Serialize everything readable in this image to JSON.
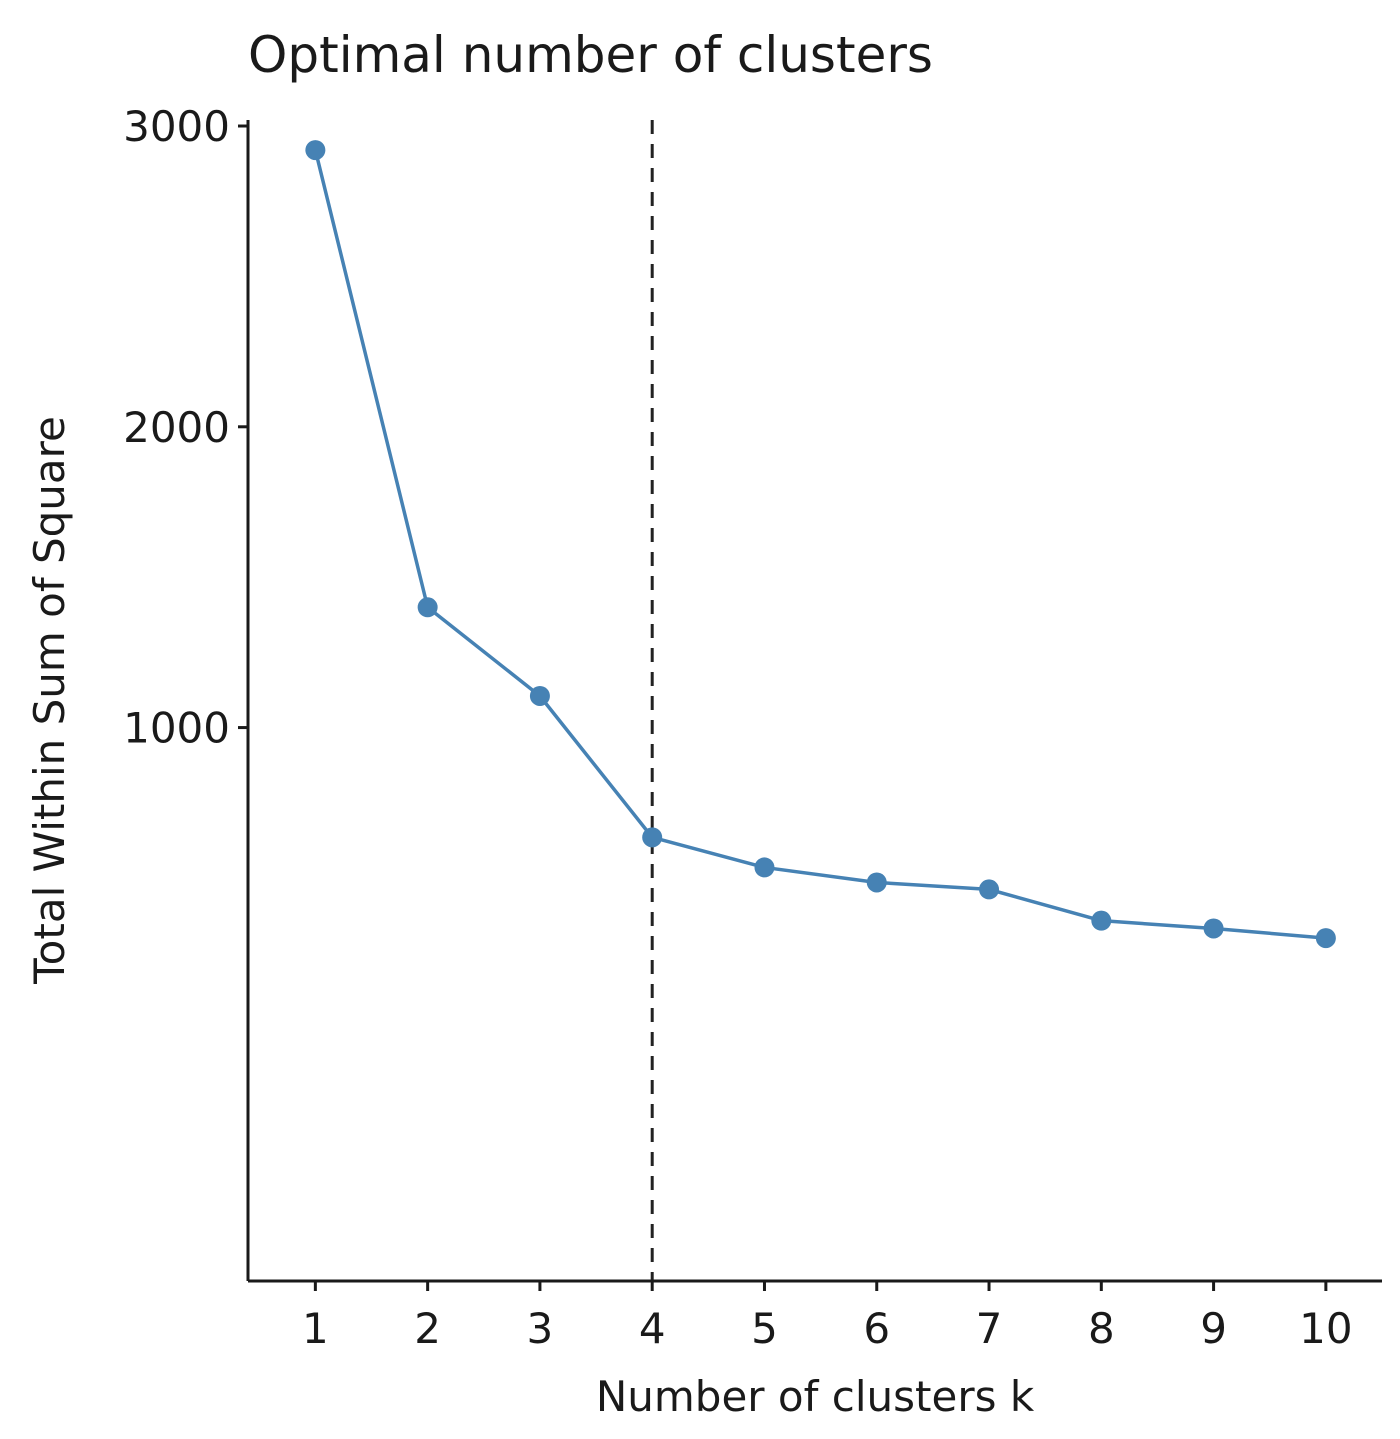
{
  "chart_data": {
    "type": "line",
    "title": "Optimal number of clusters",
    "xlabel": "Number of clusters k",
    "ylabel": "Total Within Sum of Square",
    "x": [
      1,
      2,
      3,
      4,
      5,
      6,
      7,
      8,
      9,
      10
    ],
    "x_tick_labels": [
      "1",
      "2",
      "3",
      "4",
      "5",
      "6",
      "7",
      "8",
      "9",
      "10"
    ],
    "y_ticks": [
      1000,
      2000,
      3000
    ],
    "y_tick_labels": [
      "1000",
      "2000",
      "3000"
    ],
    "ylim": [
      -840,
      3020
    ],
    "xlim": [
      0.4,
      10.5
    ],
    "series": [
      {
        "values": [
          2920,
          1400,
          1105,
          635,
          535,
          485,
          462,
          358,
          332,
          300
        ],
        "color": "#4682B4"
      }
    ],
    "reference_line": {
      "x": 4,
      "style": "dashed",
      "color": "#222222"
    },
    "grid": false,
    "legend": "none"
  }
}
